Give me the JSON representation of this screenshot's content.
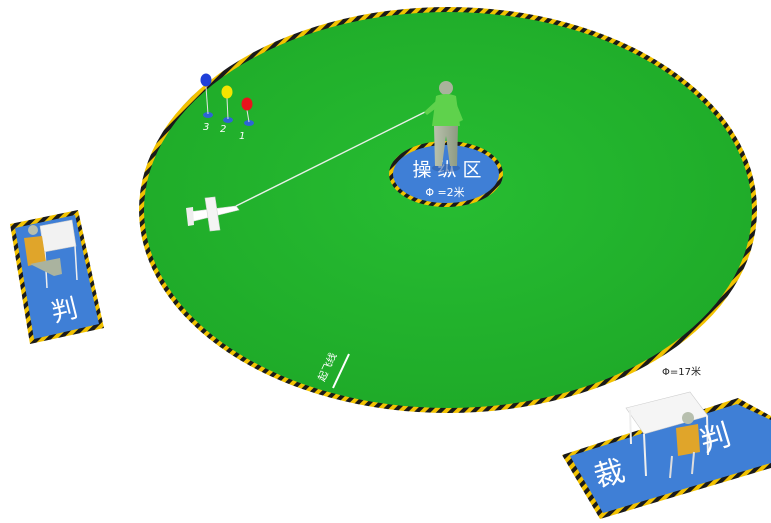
{
  "field": {
    "diameter_label": "Φ=17米",
    "launch_line_label": "起飞线",
    "colors": {
      "grass": "#21b32b",
      "stripe_yellow": "#f2c200",
      "stripe_black": "#1a1a1a",
      "zone_blue": "#3f7fd6"
    }
  },
  "control_zone": {
    "title": "操 纵 区",
    "diameter_label": "Φ =2米"
  },
  "balloons": [
    {
      "number": "3",
      "color": "#1f3fd8"
    },
    {
      "number": "2",
      "color": "#f5e400"
    },
    {
      "number": "1",
      "color": "#e8141c"
    }
  ],
  "judge_left": {
    "label": "判"
  },
  "judge_right": {
    "label_1": "裁",
    "label_2": "判"
  }
}
